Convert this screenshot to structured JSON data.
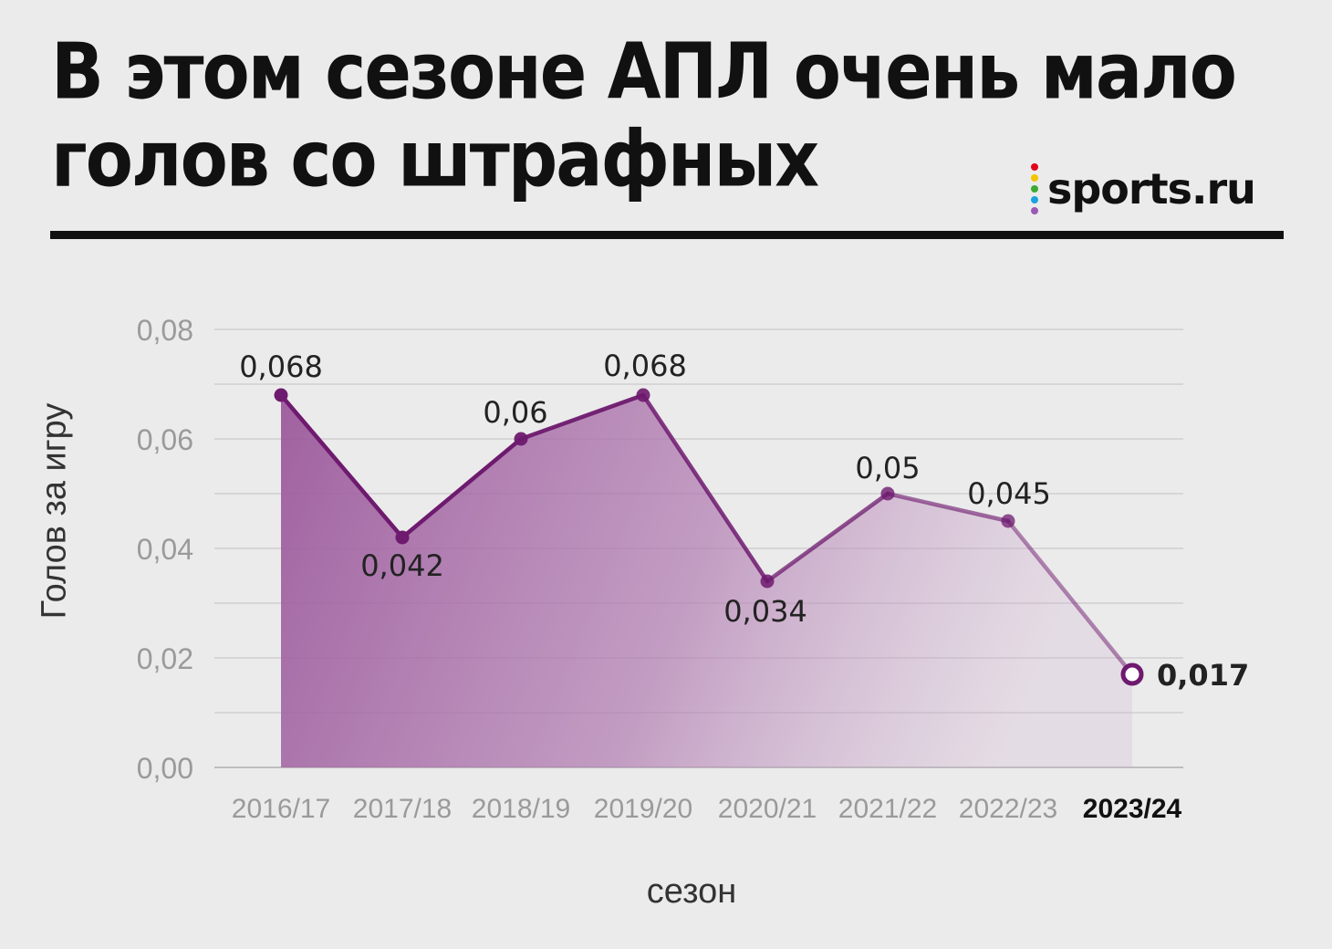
{
  "header": {
    "title_line1": "В этом сезоне АПЛ очень мало",
    "title_line2": "голов со штрафных"
  },
  "logo": {
    "text": "sports.ru",
    "dot_colors": [
      "#e3001b",
      "#f5c400",
      "#3aaa35",
      "#1aa3df",
      "#9b59b6"
    ]
  },
  "colors": {
    "line": "#6e1a6e",
    "area": "#9c5a9c",
    "last_point_fill": "#ffffff"
  },
  "chart_data": {
    "type": "area",
    "title": "В этом сезоне АПЛ очень мало голов со штрафных",
    "xlabel": "сезон",
    "ylabel": "Голов за игру",
    "ylim": [
      0,
      0.08
    ],
    "grid": true,
    "y_ticks": [
      "0,00",
      "0,02",
      "0,04",
      "0,06",
      "0,08"
    ],
    "categories": [
      "2016/17",
      "2017/18",
      "2018/19",
      "2019/20",
      "2020/21",
      "2021/22",
      "2022/23",
      "2023/24"
    ],
    "values": [
      0.068,
      0.042,
      0.06,
      0.068,
      0.034,
      0.05,
      0.045,
      0.017
    ],
    "data_labels": [
      "0,068",
      "0,042",
      "0,06",
      "0,068",
      "0,034",
      "0,05",
      "0,045",
      "0,017"
    ],
    "highlight_category": "2023/24"
  }
}
